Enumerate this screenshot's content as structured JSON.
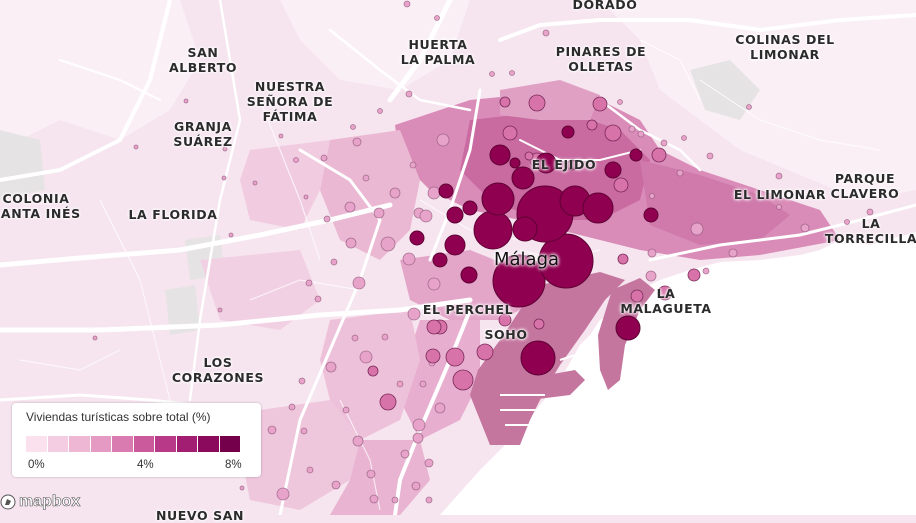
{
  "map": {
    "city_label": "Málaga",
    "colors": {
      "land": "#f6e4ef",
      "sea": "#ffffff",
      "road": "#ffffff",
      "port": "#c4769f",
      "bubble_fill": "#8f0050",
      "bubble_stroke": "#6a003b"
    }
  },
  "places": {
    "dorado": "DORADO",
    "san_alberto": "SAN\nALBERTO",
    "huerta_la_palma": "HUERTA\nLA PALMA",
    "pinares_de_olletas": "PINARES DE\nOLLETAS",
    "colinas_del_limonar": "COLINAS DEL\nLIMONAR",
    "nuestra_senora": "NUESTRA\nSEÑORA DE\nFÁTIMA",
    "granja_suarez": "GRANJA\nSUÁREZ",
    "el_ejido": "EL EJIDO",
    "parque_clavero": "PARQUE\nCLAVERO",
    "colonia_santa_ines": "COLONIA\nSANTA INÉS",
    "la_florida": "LA FLORIDA",
    "el_limonar": "EL LIMONAR",
    "la_torrecilla": "LA\nTORRECILLA",
    "la_malagueta": "LA\nMALAGUETA",
    "el_perchel": "EL PERCHEL",
    "soho": "SOHO",
    "los_corazones": "LOS\nCORAZONES",
    "nuevo_san": "NUEVO SAN"
  },
  "legend": {
    "title": "Viviendas turísticas sobre total (%)",
    "ticks": [
      "0%",
      "4%",
      "8%"
    ],
    "colors": [
      "#fbe0ee",
      "#f5cde2",
      "#eeb7d4",
      "#e49ac3",
      "#d97bb1",
      "#ca5a9c",
      "#b83987",
      "#a21e72",
      "#8c0a5e",
      "#74004c"
    ]
  },
  "attribution": {
    "logo": "mapbox"
  }
}
